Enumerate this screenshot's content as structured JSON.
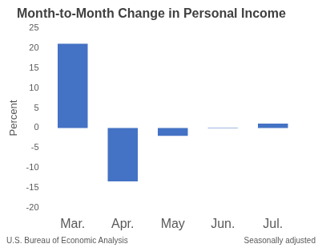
{
  "chart_data": {
    "type": "bar",
    "title": "Month-to-Month Change in Personal Income",
    "y_label": "Percent",
    "source": "U.S. Bureau of Economic Analysis",
    "note": "Seasonally adjusted",
    "categories": [
      "Mar.",
      "Apr.",
      "May",
      "Jun.",
      "Jul."
    ],
    "values": [
      21.1,
      -13.4,
      -2.0,
      0.1,
      1.1
    ],
    "color": "#4472c4",
    "ylim": [
      -20,
      25
    ],
    "yticks": [
      -20,
      -15,
      -10,
      -5,
      0,
      5,
      10,
      15,
      20,
      25
    ],
    "grid": false
  }
}
